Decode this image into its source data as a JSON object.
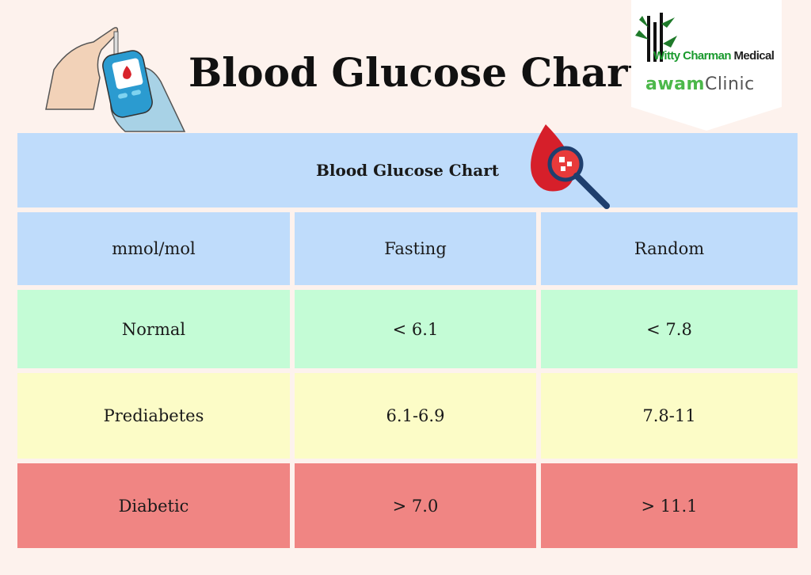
{
  "header": {
    "title": "Blood Glucose Chart",
    "logo_primary_green": "Witty Charman",
    "logo_primary_dark": "Medical",
    "logo_secondary_green": "awam",
    "logo_secondary_dark": "Clinic"
  },
  "table": {
    "caption": "Blood Glucose Chart",
    "columns": [
      "mmol/mol",
      "Fasting",
      "Random"
    ],
    "rows": [
      {
        "label": "Normal",
        "fasting": "< 6.1",
        "random": "< 7.8",
        "color": "#c4fcd6"
      },
      {
        "label": "Prediabetes",
        "fasting": "6.1-6.9",
        "random": "7.8-11",
        "color": "#fcfcc7"
      },
      {
        "label": "Diabetic",
        "fasting": "> 7.0",
        "random": "> 11.1",
        "color": "#f08583"
      }
    ]
  },
  "colors": {
    "background": "#fdf2ed",
    "header": "#bfdcfb"
  }
}
